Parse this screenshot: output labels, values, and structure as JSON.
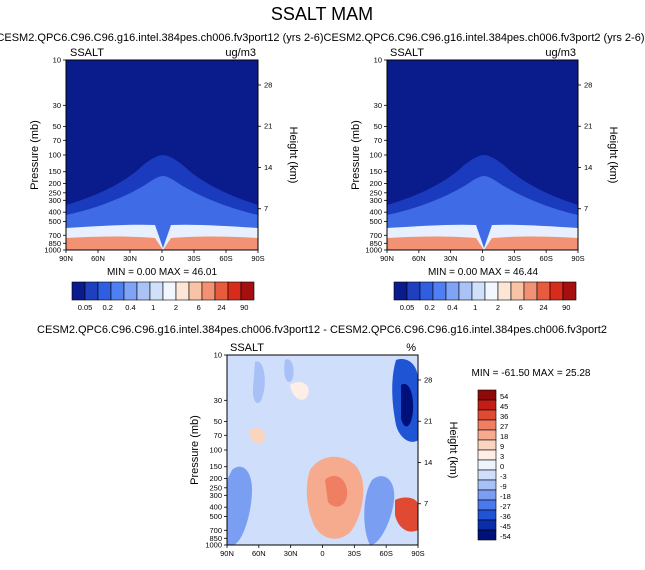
{
  "page_title": "SSALT MAM",
  "colors": {
    "levels_scale": [
      "#0a1b8c",
      "#1e3fbf",
      "#2f5fe0",
      "#4f7ff0",
      "#7fa3f5",
      "#a9c3f7",
      "#d0e0fb",
      "#f2f7ff",
      "#fde6d6",
      "#f9c3a6",
      "#f29174",
      "#e85c3e",
      "#d72b1b",
      "#a50f0f"
    ],
    "diff_scale": [
      "#00107a",
      "#0a2ea8",
      "#1f54d4",
      "#4b78ea",
      "#7a9ef2",
      "#a7c0f6",
      "#cfdefa",
      "#eef4fe",
      "#fdeee6",
      "#fbd4c0",
      "#f6ab8f",
      "#ef7e62",
      "#e04a33",
      "#c41d16",
      "#8e0a0a"
    ]
  },
  "chart_data": [
    {
      "type": "heatmap",
      "title": "CESM2.QPC6.C96.C96.g16.intel.384pes.ch006.fv3port12 (yrs 2-6)",
      "left_label": "SSALT",
      "right_label": "ug/m3",
      "ylabel": "Pressure (mb)",
      "y2label": "Height (km)",
      "x_ticks": [
        "90N",
        "60N",
        "30N",
        "0",
        "30S",
        "60S",
        "90S"
      ],
      "y_ticks": [
        "10",
        "30",
        "50",
        "70",
        "100",
        "150",
        "200",
        "250",
        "300",
        "400",
        "500",
        "700",
        "850",
        "1000"
      ],
      "y2_ticks": [
        "28",
        "21",
        "14",
        "7"
      ],
      "ylim": [
        1000,
        10
      ],
      "stats": "MIN =   0.00   MAX =  46.01",
      "min": 0.0,
      "max": 46.01
    },
    {
      "type": "heatmap",
      "title": "CESM2.QPC6.C96.C96.g16.intel.384pes.ch006.fv3port2 (yrs 2-6)",
      "left_label": "SSALT",
      "right_label": "ug/m3",
      "ylabel": "Pressure (mb)",
      "y2label": "Height (km)",
      "x_ticks": [
        "90N",
        "60N",
        "30N",
        "0",
        "30S",
        "60S",
        "90S"
      ],
      "y_ticks": [
        "10",
        "30",
        "50",
        "70",
        "100",
        "150",
        "200",
        "250",
        "300",
        "400",
        "500",
        "700",
        "850",
        "1000"
      ],
      "y2_ticks": [
        "28",
        "21",
        "14",
        "7"
      ],
      "ylim": [
        1000,
        10
      ],
      "stats": "MIN =   0.00   MAX =  46.44",
      "min": 0.0,
      "max": 46.44
    },
    {
      "type": "heatmap",
      "title": "CESM2.QPC6.C96.C96.g16.intel.384pes.ch006.fv3port12 - CESM2.QPC6.C96.C96.g16.intel.384pes.ch006.fv3port2",
      "left_label": "SSALT",
      "right_label": "%",
      "ylabel": "Pressure (mb)",
      "y2label": "Height (km)",
      "x_ticks": [
        "90N",
        "60N",
        "30N",
        "0",
        "30S",
        "60S",
        "90S"
      ],
      "y_ticks": [
        "10",
        "30",
        "50",
        "70",
        "100",
        "150",
        "200",
        "250",
        "300",
        "400",
        "500",
        "700",
        "850",
        "1000"
      ],
      "y2_ticks": [
        "28",
        "21",
        "14",
        "7"
      ],
      "ylim": [
        1000,
        10
      ],
      "stats": "MIN = -61.50   MAX =  25.28",
      "min": -61.5,
      "max": 25.28
    }
  ],
  "colorbar_levels": [
    "0.05",
    "0.2",
    "0.4",
    "1",
    "2",
    "6",
    "24",
    "90"
  ],
  "colorbar_diff": [
    "54",
    "45",
    "36",
    "27",
    "18",
    "9",
    "3",
    "0",
    "-3",
    "-9",
    "-18",
    "-27",
    "-36",
    "-45",
    "-54"
  ]
}
